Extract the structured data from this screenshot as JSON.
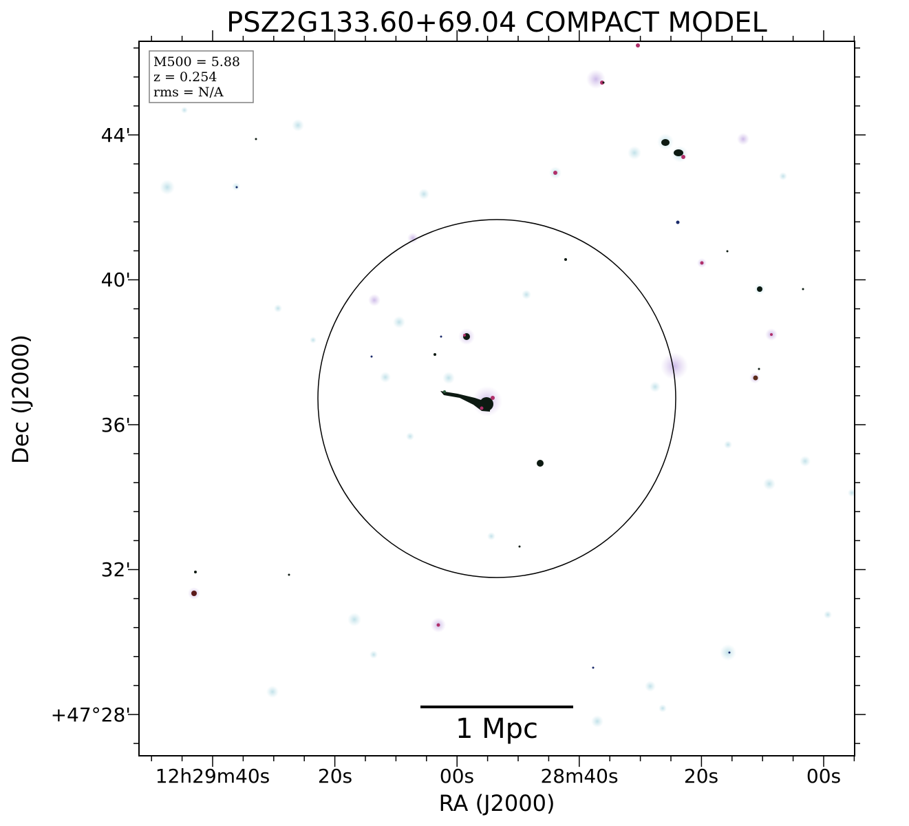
{
  "title": "PSZ2G133.60+69.04 COMPACT MODEL",
  "axes": {
    "xlabel": "RA (J2000)",
    "ylabel": "Dec (J2000)",
    "x_ticks": [
      "12h29m40s",
      "20s",
      "00s",
      "28m40s",
      "20s",
      "00s"
    ],
    "y_ticks": [
      "44'",
      "40'",
      "36'",
      "32'",
      "+47°28'"
    ]
  },
  "info_box": {
    "line1": "M500 = 5.88",
    "line2": "z = 0.254",
    "line3": "rms = N/A"
  },
  "scale_bar": {
    "label": "1 Mpc"
  },
  "colors": {
    "background": "#ffffff",
    "frame": "#000000",
    "halo": "#cfe9ef",
    "halo_purple": "#d8c8ec",
    "core_dark": "#0d1a12",
    "core_magenta": "#b0306a"
  }
}
